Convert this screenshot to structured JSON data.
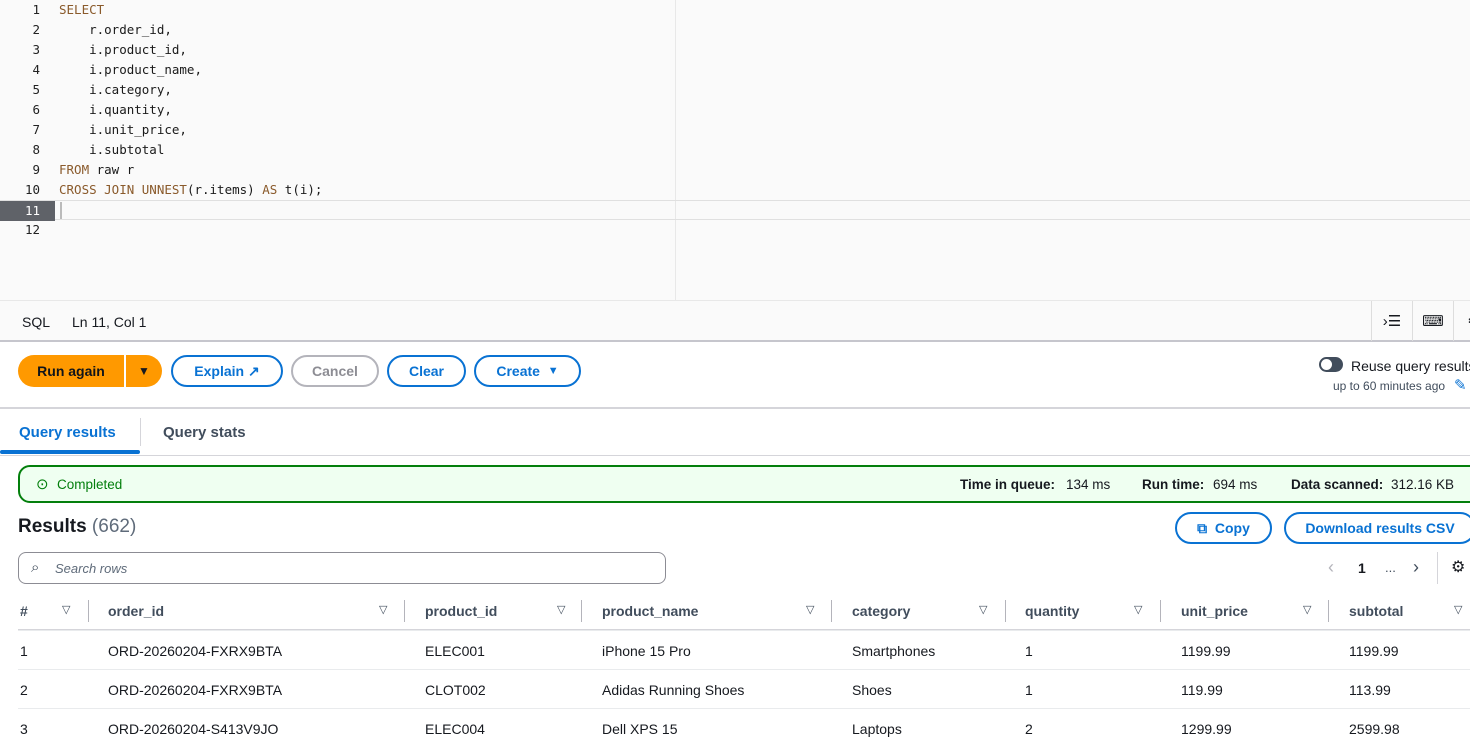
{
  "editor": {
    "lines": [
      [
        {
          "t": "SELECT",
          "kw": true
        }
      ],
      [
        {
          "t": "    r.order_id,"
        }
      ],
      [
        {
          "t": "    i.product_id,"
        }
      ],
      [
        {
          "t": "    i.product_name,"
        }
      ],
      [
        {
          "t": "    i.category,"
        }
      ],
      [
        {
          "t": "    i.quantity,"
        }
      ],
      [
        {
          "t": "    i.unit_price,"
        }
      ],
      [
        {
          "t": "    i.subtotal"
        }
      ],
      [
        {
          "t": "FROM",
          "kw": true
        },
        {
          "t": " raw r"
        }
      ],
      [
        {
          "t": "CROSS JOIN UNNEST",
          "kw": true
        },
        {
          "t": "(r.items) "
        },
        {
          "t": "AS",
          "kw": true
        },
        {
          "t": " t(i);"
        }
      ],
      [],
      []
    ],
    "active_line": 11
  },
  "statusbar": {
    "language": "SQL",
    "position": "Ln 11, Col 1"
  },
  "toolbar": {
    "run_again": "Run again",
    "explain": "Explain",
    "cancel": "Cancel",
    "clear": "Clear",
    "create": "Create",
    "reuse_label": "Reuse query results",
    "reuse_sub": "up to 60 minutes ago",
    "reuse_enabled": false
  },
  "tabs": [
    {
      "label": "Query results",
      "active": true
    },
    {
      "label": "Query stats",
      "active": false
    }
  ],
  "status": {
    "label": "Completed",
    "queue_label": "Time in queue:",
    "queue": "134 ms",
    "run_label": "Run time:",
    "run": "694 ms",
    "scanned_label": "Data scanned:",
    "scanned": "312.16 KB"
  },
  "results": {
    "title": "Results",
    "count": "(662)",
    "copy": "Copy",
    "download": "Download results CSV",
    "search_placeholder": "Search rows",
    "page": "1",
    "ellipsis": "..."
  },
  "table": {
    "columns": [
      "#",
      "order_id",
      "product_id",
      "product_name",
      "category",
      "quantity",
      "unit_price",
      "subtotal"
    ],
    "rows": [
      [
        "1",
        "ORD-20260204-FXRX9BTA",
        "ELEC001",
        "iPhone 15 Pro",
        "Smartphones",
        "1",
        "1199.99",
        "1199.99"
      ],
      [
        "2",
        "ORD-20260204-FXRX9BTA",
        "CLOT002",
        "Adidas Running Shoes",
        "Shoes",
        "1",
        "119.99",
        "113.99"
      ],
      [
        "3",
        "ORD-20260204-S413V9JO",
        "ELEC004",
        "Dell XPS 15",
        "Laptops",
        "2",
        "1299.99",
        "2599.98"
      ]
    ]
  },
  "colors": {
    "primary": "#0972d3",
    "run": "#ff9900",
    "success": "#037f0c"
  }
}
